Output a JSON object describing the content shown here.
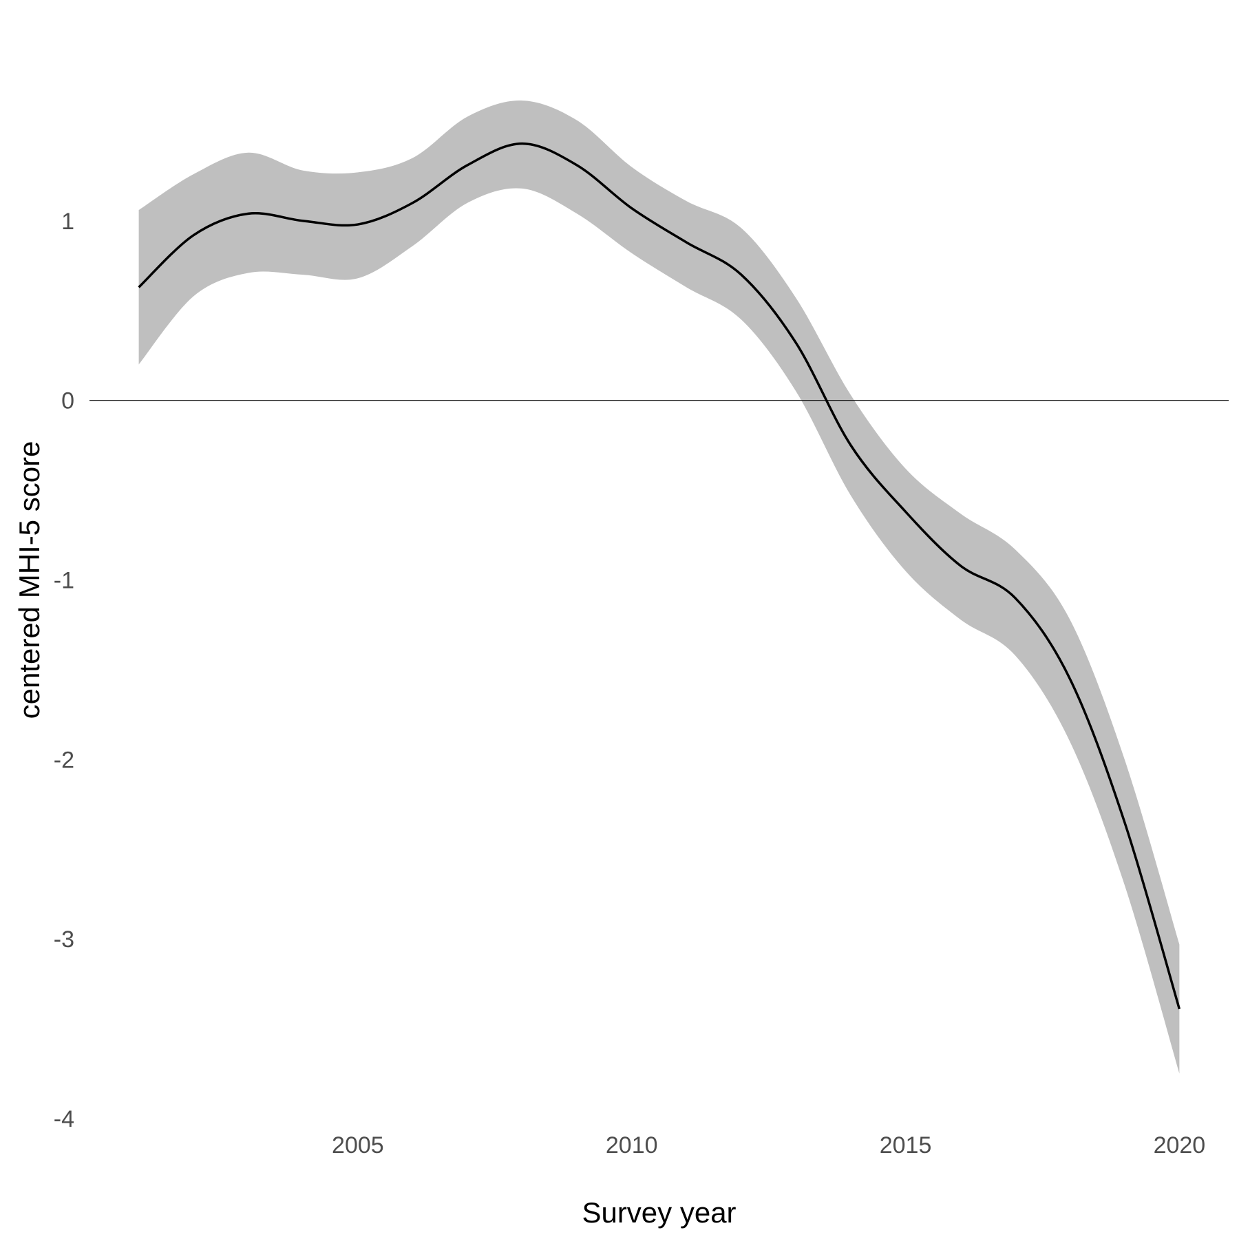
{
  "chart_data": {
    "type": "line",
    "xlabel": "Survey year",
    "ylabel": "centered MHI-5 score",
    "xlim": [
      2000.1,
      2020.9
    ],
    "ylim": [
      -4,
      2
    ],
    "x_ticks": [
      2005,
      2010,
      2015,
      2020
    ],
    "y_ticks": [
      1,
      0,
      -1,
      -2,
      -3,
      -4
    ],
    "reference_line_y": 0,
    "grid": false,
    "legend": "none",
    "colors": {
      "line": "#000000",
      "ribbon": "#bfbfbf",
      "text": "#4d4d4d"
    },
    "series": [
      {
        "x": [
          2001,
          2002,
          2003,
          2004,
          2005,
          2006,
          2007,
          2008,
          2009,
          2010,
          2011,
          2012,
          2013,
          2014,
          2015,
          2016,
          2017,
          2018,
          2019,
          2020
        ],
        "y": [
          0.63,
          0.92,
          1.04,
          1.0,
          0.98,
          1.1,
          1.31,
          1.43,
          1.31,
          1.07,
          0.88,
          0.7,
          0.32,
          -0.25,
          -0.62,
          -0.92,
          -1.1,
          -1.55,
          -2.35,
          -3.39
        ],
        "lower": [
          0.2,
          0.58,
          0.71,
          0.7,
          0.68,
          0.86,
          1.1,
          1.18,
          1.04,
          0.82,
          0.63,
          0.45,
          0.05,
          -0.53,
          -0.95,
          -1.22,
          -1.42,
          -1.9,
          -2.7,
          -3.75
        ],
        "upper": [
          1.06,
          1.26,
          1.38,
          1.28,
          1.27,
          1.35,
          1.58,
          1.67,
          1.56,
          1.3,
          1.11,
          0.96,
          0.57,
          0.03,
          -0.38,
          -0.63,
          -0.83,
          -1.22,
          -2.0,
          -3.03
        ]
      }
    ]
  }
}
